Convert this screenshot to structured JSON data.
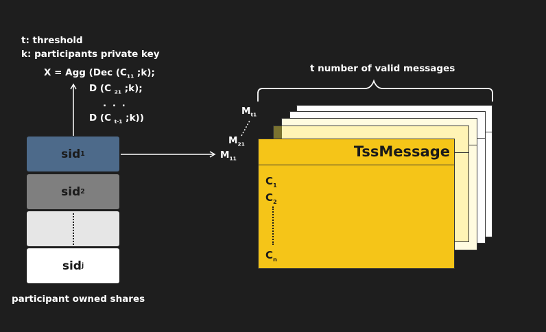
{
  "legend": {
    "threshold": "t: threshold",
    "private_key": "k: participants private key"
  },
  "formula": {
    "line1_prefix": "X  = Agg (Dec (C",
    "line1_sub": "11",
    "line1_suffix": "  ;k);",
    "line2_prefix": "D (C ",
    "line2_sub": "21",
    "line2_suffix": " ;k);",
    "dots": ". . .",
    "line3_prefix": "D (C ",
    "line3_sub": "t-1",
    "line3_suffix": " ;k))"
  },
  "shares": {
    "sid1": {
      "main": "sid",
      "sub": "1"
    },
    "sid2": {
      "main": "sid",
      "sub": "2"
    },
    "sidj": {
      "main": "sid",
      "sub": "j"
    },
    "caption": "participant owned shares"
  },
  "messages": {
    "brace_label": "t number of valid messages",
    "mt1": {
      "main": "M",
      "sub": "t1"
    },
    "m21": {
      "main": "M",
      "sub": "21"
    },
    "m11": {
      "main": "M",
      "sub": "11"
    },
    "title": "TssMessage",
    "c1": {
      "main": "C",
      "sub": "1"
    },
    "c2": {
      "main": "C",
      "sub": "2"
    },
    "cn": {
      "main": "C",
      "sub": "n"
    }
  },
  "colors": {
    "background": "#1e1e1e",
    "sid1": "#4d6a8a",
    "sid2": "#7f7f7f",
    "sid_dots": "#e6e6e6",
    "sidj": "#ffffff",
    "front_card": "#f5c518"
  }
}
